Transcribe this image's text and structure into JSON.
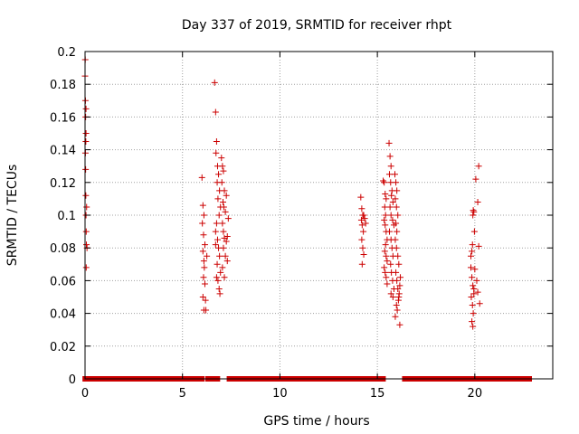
{
  "chart_data": {
    "type": "scatter",
    "title": "Day 337 of 2019, SRMTID for receiver rhpt",
    "xlabel": "GPS time / hours",
    "ylabel": "SRMTID / TECUs",
    "xlim": [
      0,
      24
    ],
    "ylim": [
      0,
      0.2
    ],
    "xticks": [
      0,
      5,
      10,
      15,
      20
    ],
    "xtick_labels": [
      "0",
      "5",
      "10",
      "15",
      "20"
    ],
    "yticks": [
      0,
      0.02,
      0.04,
      0.06,
      0.08,
      0.1,
      0.12,
      0.14,
      0.16,
      0.18,
      0.2
    ],
    "ytick_labels": [
      "0",
      "0.02",
      "0.04",
      "0.06",
      "0.08",
      "0.1",
      "0.12",
      "0.14",
      "0.16",
      "0.18",
      "0.2"
    ],
    "grid": true,
    "marker": "+",
    "color": "#cc0000",
    "series": [
      {
        "name": "SRMTID",
        "points": [
          [
            0.0,
            0.185
          ],
          [
            0.02,
            0.17
          ],
          [
            0.03,
            0.16
          ],
          [
            0.05,
            0.165
          ],
          [
            0.05,
            0.15
          ],
          [
            0.02,
            0.138
          ],
          [
            0.03,
            0.128
          ],
          [
            0.04,
            0.112
          ],
          [
            0.08,
            0.105
          ],
          [
            0.05,
            0.1
          ],
          [
            0.06,
            0.09
          ],
          [
            0.07,
            0.082
          ],
          [
            0.1,
            0.08
          ],
          [
            0.06,
            0.068
          ],
          [
            0.01,
            0.195
          ],
          [
            0.04,
            0.145
          ],
          [
            6.0,
            0.123
          ],
          [
            6.05,
            0.106
          ],
          [
            6.1,
            0.1
          ],
          [
            6.02,
            0.095
          ],
          [
            6.08,
            0.088
          ],
          [
            6.15,
            0.082
          ],
          [
            6.05,
            0.078
          ],
          [
            6.1,
            0.072
          ],
          [
            6.12,
            0.068
          ],
          [
            6.08,
            0.062
          ],
          [
            6.15,
            0.058
          ],
          [
            6.05,
            0.05
          ],
          [
            6.1,
            0.042
          ],
          [
            6.2,
            0.042
          ],
          [
            6.18,
            0.048
          ],
          [
            6.25,
            0.075
          ],
          [
            6.65,
            0.181
          ],
          [
            6.7,
            0.163
          ],
          [
            6.75,
            0.145
          ],
          [
            6.72,
            0.138
          ],
          [
            6.8,
            0.13
          ],
          [
            6.85,
            0.125
          ],
          [
            6.78,
            0.12
          ],
          [
            6.9,
            0.115
          ],
          [
            6.82,
            0.11
          ],
          [
            6.95,
            0.105
          ],
          [
            6.88,
            0.1
          ],
          [
            6.75,
            0.095
          ],
          [
            6.7,
            0.09
          ],
          [
            6.8,
            0.085
          ],
          [
            6.85,
            0.08
          ],
          [
            6.9,
            0.075
          ],
          [
            6.78,
            0.07
          ],
          [
            6.95,
            0.065
          ],
          [
            6.82,
            0.06
          ],
          [
            6.88,
            0.055
          ],
          [
            6.92,
            0.052
          ],
          [
            6.7,
            0.082
          ],
          [
            6.75,
            0.062
          ],
          [
            7.0,
            0.135
          ],
          [
            7.05,
            0.13
          ],
          [
            7.1,
            0.127
          ],
          [
            7.02,
            0.12
          ],
          [
            7.15,
            0.115
          ],
          [
            7.08,
            0.108
          ],
          [
            7.12,
            0.105
          ],
          [
            7.2,
            0.102
          ],
          [
            7.05,
            0.095
          ],
          [
            7.1,
            0.09
          ],
          [
            7.15,
            0.086
          ],
          [
            7.25,
            0.084
          ],
          [
            7.3,
            0.087
          ],
          [
            7.1,
            0.08
          ],
          [
            7.2,
            0.075
          ],
          [
            7.3,
            0.072
          ],
          [
            7.35,
            0.098
          ],
          [
            7.05,
            0.068
          ],
          [
            7.15,
            0.062
          ],
          [
            7.25,
            0.112
          ],
          [
            14.15,
            0.111
          ],
          [
            14.2,
            0.104
          ],
          [
            14.25,
            0.1
          ],
          [
            14.18,
            0.097
          ],
          [
            14.22,
            0.094
          ],
          [
            14.3,
            0.1
          ],
          [
            14.28,
            0.09
          ],
          [
            14.2,
            0.085
          ],
          [
            14.25,
            0.08
          ],
          [
            14.3,
            0.076
          ],
          [
            14.22,
            0.07
          ],
          [
            14.35,
            0.098
          ],
          [
            14.4,
            0.095
          ],
          [
            15.3,
            0.121
          ],
          [
            15.35,
            0.12
          ],
          [
            15.4,
            0.113
          ],
          [
            15.45,
            0.11
          ],
          [
            15.38,
            0.105
          ],
          [
            15.42,
            0.1
          ],
          [
            15.35,
            0.097
          ],
          [
            15.4,
            0.094
          ],
          [
            15.45,
            0.09
          ],
          [
            15.5,
            0.085
          ],
          [
            15.42,
            0.082
          ],
          [
            15.38,
            0.078
          ],
          [
            15.45,
            0.075
          ],
          [
            15.5,
            0.072
          ],
          [
            15.35,
            0.068
          ],
          [
            15.4,
            0.065
          ],
          [
            15.45,
            0.062
          ],
          [
            15.5,
            0.058
          ],
          [
            15.6,
            0.144
          ],
          [
            15.65,
            0.136
          ],
          [
            15.7,
            0.13
          ],
          [
            15.62,
            0.125
          ],
          [
            15.68,
            0.12
          ],
          [
            15.75,
            0.115
          ],
          [
            15.72,
            0.112
          ],
          [
            15.8,
            0.108
          ],
          [
            15.65,
            0.105
          ],
          [
            15.7,
            0.1
          ],
          [
            15.78,
            0.097
          ],
          [
            15.85,
            0.094
          ],
          [
            15.62,
            0.09
          ],
          [
            15.7,
            0.085
          ],
          [
            15.75,
            0.08
          ],
          [
            15.8,
            0.075
          ],
          [
            15.68,
            0.07
          ],
          [
            15.72,
            0.065
          ],
          [
            15.78,
            0.06
          ],
          [
            15.85,
            0.055
          ],
          [
            15.7,
            0.052
          ],
          [
            15.8,
            0.05
          ],
          [
            15.9,
            0.125
          ],
          [
            15.95,
            0.12
          ],
          [
            16.0,
            0.115
          ],
          [
            15.92,
            0.11
          ],
          [
            15.98,
            0.105
          ],
          [
            16.05,
            0.1
          ],
          [
            15.95,
            0.095
          ],
          [
            16.0,
            0.09
          ],
          [
            15.92,
            0.085
          ],
          [
            15.98,
            0.08
          ],
          [
            16.05,
            0.075
          ],
          [
            16.1,
            0.07
          ],
          [
            15.95,
            0.065
          ],
          [
            16.0,
            0.06
          ],
          [
            16.05,
            0.055
          ],
          [
            16.1,
            0.05
          ],
          [
            15.98,
            0.045
          ],
          [
            16.02,
            0.042
          ],
          [
            15.92,
            0.038
          ],
          [
            16.08,
            0.048
          ],
          [
            16.12,
            0.052
          ],
          [
            16.15,
            0.057
          ],
          [
            16.18,
            0.062
          ],
          [
            16.15,
            0.033
          ],
          [
            19.8,
            0.068
          ],
          [
            19.85,
            0.062
          ],
          [
            19.9,
            0.057
          ],
          [
            19.82,
            0.05
          ],
          [
            19.88,
            0.045
          ],
          [
            19.92,
            0.04
          ],
          [
            19.85,
            0.035
          ],
          [
            19.9,
            0.032
          ],
          [
            19.95,
            0.055
          ],
          [
            19.8,
            0.075
          ],
          [
            19.85,
            0.078
          ],
          [
            19.88,
            0.082
          ],
          [
            19.9,
            0.1
          ],
          [
            19.92,
            0.103
          ],
          [
            19.95,
            0.102
          ],
          [
            19.98,
            0.09
          ],
          [
            20.0,
            0.067
          ],
          [
            20.05,
            0.122
          ],
          [
            20.1,
            0.06
          ],
          [
            19.95,
            0.052
          ],
          [
            20.2,
            0.13
          ],
          [
            20.15,
            0.108
          ],
          [
            20.2,
            0.081
          ],
          [
            20.15,
            0.053
          ],
          [
            20.25,
            0.046
          ]
        ]
      },
      {
        "name": "zero-level",
        "points": [
          [
            0.1,
            0
          ],
          [
            0.3,
            0
          ],
          [
            0.5,
            0
          ],
          [
            0.7,
            0
          ],
          [
            0.9,
            0
          ],
          [
            1.1,
            0
          ],
          [
            1.3,
            0
          ],
          [
            1.5,
            0
          ],
          [
            1.7,
            0
          ],
          [
            1.9,
            0
          ],
          [
            2.1,
            0
          ],
          [
            2.3,
            0
          ],
          [
            2.5,
            0
          ],
          [
            2.7,
            0
          ],
          [
            2.9,
            0
          ],
          [
            3.1,
            0
          ],
          [
            3.3,
            0
          ],
          [
            3.5,
            0
          ],
          [
            3.7,
            0
          ],
          [
            3.9,
            0
          ],
          [
            4.1,
            0
          ],
          [
            4.3,
            0
          ],
          [
            4.5,
            0
          ],
          [
            4.7,
            0
          ],
          [
            4.9,
            0
          ],
          [
            5.1,
            0
          ],
          [
            5.3,
            0
          ],
          [
            5.5,
            0
          ],
          [
            5.7,
            0
          ],
          [
            5.9,
            0
          ],
          [
            6.4,
            0
          ],
          [
            6.55,
            0
          ],
          [
            6.7,
            0
          ],
          [
            7.5,
            0
          ],
          [
            7.7,
            0
          ],
          [
            7.9,
            0
          ],
          [
            8.1,
            0
          ],
          [
            8.3,
            0
          ],
          [
            8.5,
            0
          ],
          [
            8.7,
            0
          ],
          [
            8.9,
            0
          ],
          [
            9.1,
            0
          ],
          [
            9.3,
            0
          ],
          [
            9.5,
            0
          ],
          [
            9.7,
            0
          ],
          [
            9.9,
            0
          ],
          [
            10.1,
            0
          ],
          [
            10.3,
            0
          ],
          [
            10.5,
            0
          ],
          [
            10.7,
            0
          ],
          [
            10.9,
            0
          ],
          [
            11.1,
            0
          ],
          [
            11.3,
            0
          ],
          [
            11.5,
            0
          ],
          [
            11.7,
            0
          ],
          [
            11.8,
            0
          ],
          [
            12.0,
            0
          ],
          [
            12.2,
            0
          ],
          [
            12.4,
            0
          ],
          [
            12.6,
            0
          ],
          [
            12.8,
            0
          ],
          [
            13.0,
            0
          ],
          [
            13.2,
            0
          ],
          [
            13.4,
            0
          ],
          [
            13.6,
            0
          ],
          [
            13.8,
            0
          ],
          [
            14.0,
            0
          ],
          [
            14.2,
            0
          ],
          [
            14.4,
            0
          ],
          [
            14.6,
            0
          ],
          [
            14.8,
            0
          ],
          [
            15.0,
            0
          ],
          [
            15.2,
            0
          ],
          [
            16.5,
            0
          ],
          [
            16.7,
            0
          ],
          [
            16.9,
            0
          ],
          [
            17.1,
            0
          ],
          [
            17.3,
            0
          ],
          [
            17.5,
            0
          ],
          [
            17.7,
            0
          ],
          [
            17.9,
            0
          ],
          [
            18.1,
            0
          ],
          [
            18.3,
            0
          ],
          [
            18.5,
            0
          ],
          [
            18.7,
            0
          ],
          [
            18.9,
            0
          ],
          [
            19.1,
            0
          ],
          [
            19.3,
            0
          ],
          [
            19.5,
            0
          ],
          [
            19.7,
            0
          ],
          [
            19.9,
            0
          ],
          [
            20.3,
            0
          ],
          [
            20.5,
            0
          ],
          [
            20.7,
            0
          ],
          [
            20.9,
            0
          ],
          [
            21.1,
            0
          ],
          [
            21.3,
            0
          ],
          [
            21.5,
            0
          ],
          [
            21.7,
            0
          ],
          [
            21.9,
            0
          ],
          [
            22.1,
            0
          ],
          [
            22.3,
            0
          ],
          [
            22.5,
            0
          ],
          [
            22.7,
            0
          ]
        ]
      }
    ]
  }
}
